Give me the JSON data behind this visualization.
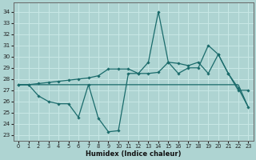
{
  "xlabel": "Humidex (Indice chaleur)",
  "xlim": [
    -0.5,
    23.5
  ],
  "ylim": [
    22.5,
    34.8
  ],
  "yticks": [
    23,
    24,
    25,
    26,
    27,
    28,
    29,
    30,
    31,
    32,
    33,
    34
  ],
  "xticks": [
    0,
    1,
    2,
    3,
    4,
    5,
    6,
    7,
    8,
    9,
    10,
    11,
    12,
    13,
    14,
    15,
    16,
    17,
    18,
    19,
    20,
    21,
    22,
    23
  ],
  "bg_color": "#aed4d2",
  "grid_color": "#c8e8e6",
  "line_color": "#1a6b6b",
  "line1_x": [
    0,
    1,
    2,
    3,
    4,
    5,
    6,
    7,
    8,
    9,
    10,
    11,
    12,
    13,
    14,
    15,
    16,
    17,
    18,
    19,
    20,
    21,
    22,
    23
  ],
  "line1_y": [
    27.5,
    27.5,
    26.5,
    26.0,
    25.8,
    25.8,
    24.6,
    27.5,
    24.5,
    23.3,
    23.4,
    28.5,
    28.5,
    29.5,
    34.0,
    29.5,
    28.5,
    29.0,
    29.0,
    31.0,
    30.2,
    28.5,
    27.2,
    25.5
  ],
  "line2_x": [
    0,
    1,
    2,
    3,
    4,
    5,
    6,
    7,
    8,
    9,
    10,
    11,
    12,
    13,
    14,
    15,
    16,
    17,
    18,
    19,
    20,
    21,
    22,
    23
  ],
  "line2_y": [
    27.5,
    27.5,
    27.6,
    27.7,
    27.8,
    27.9,
    28.0,
    28.1,
    28.3,
    28.9,
    28.9,
    28.9,
    28.5,
    28.5,
    28.6,
    29.5,
    29.4,
    29.2,
    29.5,
    28.5,
    30.2,
    28.5,
    27.0,
    27.0
  ],
  "line3_x": [
    0,
    1,
    2,
    3,
    4,
    5,
    6,
    7,
    8,
    9,
    10,
    11,
    12,
    13,
    14,
    15,
    16,
    17,
    18,
    19,
    20,
    21,
    22,
    23
  ],
  "line3_y": [
    27.5,
    27.5,
    27.5,
    27.5,
    27.5,
    27.5,
    27.5,
    27.5,
    27.5,
    27.5,
    27.5,
    27.5,
    27.5,
    27.5,
    27.5,
    27.5,
    27.5,
    27.5,
    27.5,
    27.5,
    27.5,
    27.5,
    27.5,
    25.5
  ]
}
